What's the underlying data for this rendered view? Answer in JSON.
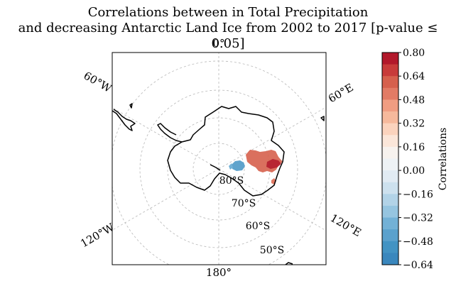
{
  "figure": {
    "title_line1": "Correlations between in Total Precipitation",
    "title_line2": "and decreasing Antarctic Land Ice from 2002 to 2017 [p-value ≤ 0.05]"
  },
  "map": {
    "projection": "south-polar-stereographic",
    "meridian_labels": {
      "top": "0°",
      "bottom": "180°",
      "upper_left": "60°W",
      "upper_right": "60°E",
      "lower_left": "120°W",
      "lower_right": "120°E"
    },
    "parallel_labels": [
      "80°S",
      "70°S",
      "60°S",
      "50°S"
    ],
    "gridlines": true,
    "coastline_color": "#000000",
    "regions": [
      {
        "id": "east-antarctica-positive",
        "sign": "positive",
        "max_value": 0.8
      },
      {
        "id": "interior-negative",
        "sign": "negative",
        "min_value": -0.64
      }
    ]
  },
  "colorbar": {
    "label": "Correlations",
    "range": [
      -0.64,
      0.8
    ],
    "tick_labels": [
      "0.80",
      "0.64",
      "0.48",
      "0.32",
      "0.16",
      "0.00",
      "−0.16",
      "−0.32",
      "−0.48",
      "−0.64"
    ],
    "colors_top_to_bottom": [
      "#b2182b",
      "#c83b3a",
      "#d6604d",
      "#e27b65",
      "#f09d82",
      "#f6b99c",
      "#fbd3bd",
      "#fbe6d9",
      "#f7f2ee",
      "#eef2f5",
      "#e1ebf3",
      "#cde1ee",
      "#b2d3e7",
      "#96c5e0",
      "#73b1d6",
      "#5ba1cd",
      "#4393c3",
      "#3a87bd"
    ]
  }
}
